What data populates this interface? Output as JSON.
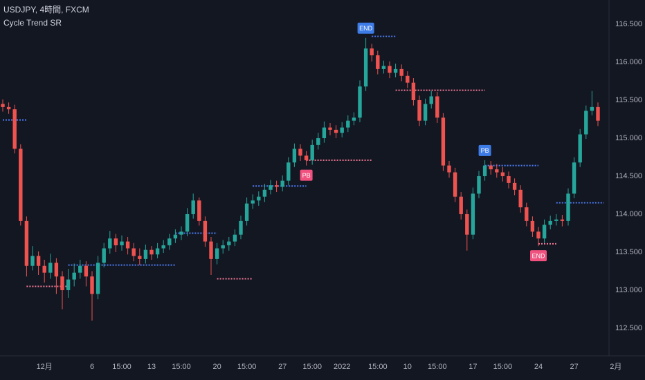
{
  "chart_data": {
    "type": "candlestick",
    "symbol": "USDJPY, 4時間, FXCM",
    "indicator": "Cycle Trend SR",
    "up_color": "#26a69a",
    "down_color": "#ef5350",
    "grid": false,
    "ylim": [
      112.136,
      116.818
    ],
    "yticks": [
      {
        "value": 116.5,
        "label": "116.500"
      },
      {
        "value": 116,
        "label": "116.000"
      },
      {
        "value": 115.5,
        "label": "115.500"
      },
      {
        "value": 115,
        "label": "115.000"
      },
      {
        "value": 114.5,
        "label": "114.500"
      },
      {
        "value": 114,
        "label": "114.000"
      },
      {
        "value": 113.5,
        "label": "113.500"
      },
      {
        "value": 113,
        "label": "113.000"
      },
      {
        "value": 112.5,
        "label": "112.500"
      }
    ],
    "categories": [
      null,
      null,
      null,
      null,
      null,
      null,
      null,
      "12月",
      null,
      null,
      null,
      null,
      null,
      null,
      null,
      "6",
      null,
      null,
      null,
      null,
      "15:00",
      null,
      null,
      null,
      null,
      "13",
      null,
      null,
      null,
      null,
      "15:00",
      null,
      null,
      null,
      null,
      null,
      "20",
      null,
      null,
      null,
      null,
      "15:00",
      null,
      null,
      null,
      null,
      null,
      "27",
      null,
      null,
      null,
      null,
      "15:00",
      null,
      null,
      null,
      null,
      "2022",
      null,
      null,
      null,
      null,
      null,
      "15:00",
      null,
      null,
      null,
      null,
      "10",
      null,
      null,
      null,
      null,
      "15:00",
      null,
      null,
      null,
      null,
      null,
      "17",
      null,
      null,
      null,
      null,
      "15:00",
      null,
      null,
      null,
      null,
      null,
      "24",
      null,
      null,
      null,
      null,
      null,
      "27",
      null,
      null,
      null,
      null,
      null,
      null,
      "2月"
    ],
    "open": [
      115.45,
      115.41,
      115.38,
      114.86,
      113.91,
      113.32,
      113.45,
      113.32,
      113.23,
      113.36,
      113.18,
      113.0,
      113.14,
      113.23,
      113.32,
      113.18,
      112.95,
      113.36,
      113.55,
      113.68,
      113.59,
      113.64,
      113.55,
      113.45,
      113.41,
      113.53,
      113.47,
      113.55,
      113.59,
      113.68,
      113.73,
      113.77,
      114.0,
      114.18,
      113.91,
      113.64,
      113.41,
      113.55,
      113.59,
      113.64,
      113.73,
      113.91,
      114.14,
      114.18,
      114.23,
      114.32,
      114.38,
      114.36,
      114.44,
      114.68,
      114.86,
      114.77,
      114.71,
      114.91,
      115.0,
      115.14,
      115.11,
      115.07,
      115.14,
      115.23,
      115.27,
      115.68,
      116.18,
      116.09,
      115.91,
      115.95,
      115.86,
      115.91,
      115.82,
      115.73,
      115.5,
      115.23,
      115.45,
      115.55,
      115.27,
      114.64,
      114.55,
      114.23,
      114.0,
      113.73,
      114.27,
      114.5,
      114.64,
      114.59,
      114.55,
      114.5,
      114.41,
      114.32,
      114.09,
      113.91,
      113.77,
      113.68,
      113.86,
      113.91,
      113.93,
      113.91,
      114.27,
      114.68,
      115.05,
      115.36,
      115.41,
      null,
      null,
      null
    ],
    "high": [
      115.51,
      115.47,
      115.44,
      114.92,
      113.97,
      113.58,
      113.51,
      113.4,
      113.48,
      113.42,
      113.25,
      113.28,
      113.35,
      113.4,
      113.38,
      113.25,
      113.45,
      113.62,
      113.78,
      113.74,
      113.72,
      113.7,
      113.62,
      113.55,
      113.6,
      113.58,
      113.62,
      113.66,
      113.74,
      113.8,
      113.84,
      114.08,
      114.27,
      114.22,
      113.97,
      113.7,
      113.62,
      113.66,
      113.7,
      113.8,
      113.98,
      114.22,
      114.26,
      114.3,
      114.4,
      114.45,
      114.44,
      114.51,
      114.75,
      114.93,
      114.92,
      114.83,
      114.98,
      115.07,
      115.22,
      115.2,
      115.17,
      115.21,
      115.3,
      115.34,
      115.76,
      116.32,
      116.24,
      116.15,
      116.02,
      116.01,
      115.98,
      115.97,
      115.88,
      115.79,
      115.56,
      115.52,
      115.62,
      115.61,
      115.33,
      114.7,
      114.61,
      114.29,
      114.06,
      114.35,
      114.57,
      114.71,
      114.7,
      114.66,
      114.62,
      114.56,
      114.47,
      114.38,
      114.15,
      113.97,
      113.83,
      113.93,
      113.98,
      114.0,
      113.99,
      114.34,
      114.75,
      115.12,
      115.43,
      115.62,
      115.47,
      null,
      null,
      null
    ],
    "low": [
      115.35,
      115.32,
      114.8,
      113.85,
      113.18,
      113.26,
      113.2,
      113.1,
      113.15,
      112.95,
      112.75,
      112.9,
      113.05,
      113.15,
      113.05,
      112.6,
      112.88,
      113.3,
      113.48,
      113.5,
      113.52,
      113.47,
      113.38,
      113.33,
      113.35,
      113.4,
      113.42,
      113.49,
      113.53,
      113.62,
      113.66,
      113.71,
      113.94,
      113.85,
      113.57,
      113.2,
      113.34,
      113.48,
      113.52,
      113.58,
      113.67,
      113.85,
      114.07,
      114.11,
      114.16,
      114.26,
      114.29,
      114.3,
      114.38,
      114.62,
      114.7,
      114.64,
      114.65,
      114.85,
      114.94,
      115.04,
      115.0,
      115.01,
      115.08,
      115.17,
      115.21,
      115.62,
      116.01,
      115.84,
      115.85,
      115.79,
      115.8,
      115.75,
      115.66,
      115.43,
      115.16,
      115.17,
      115.39,
      115.2,
      114.57,
      114.48,
      114.16,
      113.93,
      113.52,
      113.67,
      114.21,
      114.44,
      114.52,
      114.48,
      114.43,
      114.34,
      114.25,
      114.02,
      113.84,
      113.7,
      113.58,
      113.62,
      113.8,
      113.85,
      113.84,
      113.85,
      114.21,
      114.62,
      114.99,
      115.3,
      115.16,
      null,
      null,
      null
    ],
    "close": [
      115.41,
      115.38,
      114.86,
      113.91,
      113.32,
      113.45,
      113.32,
      113.23,
      113.36,
      113.18,
      113.0,
      113.14,
      113.23,
      113.32,
      113.18,
      112.95,
      113.36,
      113.55,
      113.68,
      113.59,
      113.64,
      113.55,
      113.45,
      113.41,
      113.53,
      113.47,
      113.55,
      113.59,
      113.68,
      113.73,
      113.77,
      114.0,
      114.18,
      113.91,
      113.64,
      113.41,
      113.55,
      113.59,
      113.64,
      113.73,
      113.91,
      114.14,
      114.18,
      114.23,
      114.32,
      114.38,
      114.36,
      114.44,
      114.68,
      114.86,
      114.77,
      114.71,
      114.91,
      115.0,
      115.14,
      115.11,
      115.07,
      115.14,
      115.23,
      115.27,
      115.68,
      116.18,
      116.09,
      115.91,
      115.95,
      115.86,
      115.91,
      115.82,
      115.73,
      115.5,
      115.23,
      115.45,
      115.55,
      115.27,
      114.64,
      114.55,
      114.23,
      114.0,
      113.73,
      114.27,
      114.5,
      114.64,
      114.59,
      114.55,
      114.5,
      114.41,
      114.32,
      114.09,
      113.91,
      113.77,
      113.68,
      113.86,
      113.91,
      113.93,
      113.91,
      114.27,
      114.68,
      115.05,
      115.36,
      115.41,
      115.23,
      null,
      null,
      null
    ],
    "levels": [
      {
        "value": 115.24,
        "from": 0,
        "to": 4,
        "color": "#4d7cf4"
      },
      {
        "value": 113.05,
        "from": 4,
        "to": 11,
        "color": "#f47a96"
      },
      {
        "value": 113.33,
        "from": 11,
        "to": 29,
        "color": "#4d7cf4"
      },
      {
        "value": 113.75,
        "from": 29,
        "to": 36,
        "color": "#4d7cf4"
      },
      {
        "value": 113.15,
        "from": 36,
        "to": 42,
        "color": "#f47a96"
      },
      {
        "value": 114.37,
        "from": 42,
        "to": 51,
        "color": "#4d7cf4"
      },
      {
        "value": 114.71,
        "from": 51,
        "to": 62,
        "color": "#f47a96"
      },
      {
        "value": 116.34,
        "from": 62,
        "to": 66,
        "color": "#4d7cf4"
      },
      {
        "value": 115.63,
        "from": 66,
        "to": 81,
        "color": "#f47a96"
      },
      {
        "value": 114.64,
        "from": 81,
        "to": 90,
        "color": "#4d7cf4"
      },
      {
        "value": 113.61,
        "from": 90,
        "to": 93,
        "color": "#f47a96"
      },
      {
        "value": 114.15,
        "from": 93,
        "to": 101,
        "color": "#4d7cf4"
      }
    ],
    "annotations": [
      {
        "text": "END",
        "index": 61,
        "place": "above",
        "color": "#3d7ce6"
      },
      {
        "text": "PB",
        "index": 51,
        "place": "below",
        "color": "#f0517e"
      },
      {
        "text": "PB",
        "index": 81,
        "place": "above",
        "color": "#3d7ce6"
      },
      {
        "text": "END",
        "index": 90,
        "place": "below",
        "color": "#f0517e"
      }
    ]
  }
}
